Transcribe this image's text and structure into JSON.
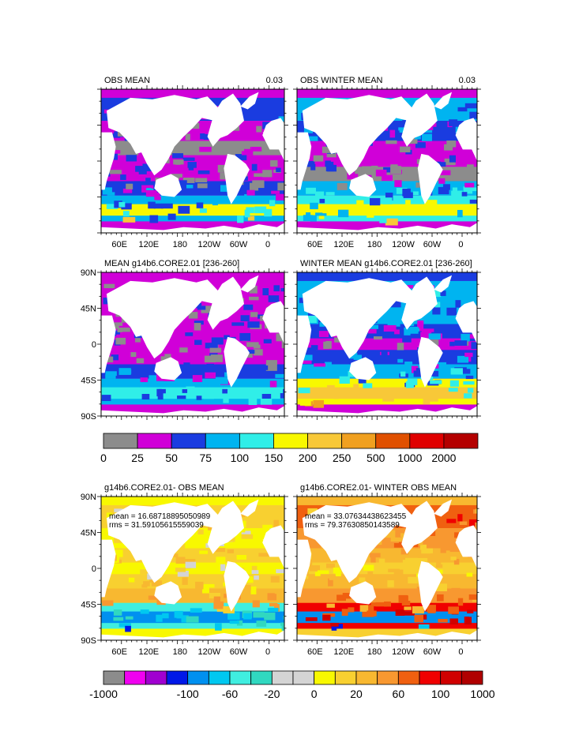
{
  "chart_data": {
    "type": "heatmap",
    "map": {
      "x_tick_labels": [
        "60E",
        "120E",
        "180",
        "120W",
        "60W",
        "0"
      ],
      "y_tick_labels": [
        "90N",
        "45N",
        "0",
        "45S",
        "90S"
      ]
    },
    "panels": [
      {
        "id": "obs-mean",
        "title": "OBS MEAN",
        "corner_value": "0.03",
        "show_x_labels": true,
        "show_y_labels": false,
        "scale": "absolute"
      },
      {
        "id": "obs-winter-mean",
        "title": "OBS WINTER MEAN",
        "corner_value": "0.03",
        "show_x_labels": true,
        "show_y_labels": false,
        "scale": "absolute"
      },
      {
        "id": "model-mean",
        "title": "MEAN g14b6.CORE2.01 [236-260]",
        "corner_value": "",
        "show_x_labels": false,
        "show_y_labels": true,
        "scale": "absolute"
      },
      {
        "id": "model-winter-mean",
        "title": "WINTER MEAN g14b6.CORE2.01 [236-260]",
        "corner_value": "",
        "show_x_labels": false,
        "show_y_labels": false,
        "scale": "absolute"
      },
      {
        "id": "diff-mean",
        "title": "g14b6.CORE2.01- OBS MEAN",
        "corner_value": "",
        "show_x_labels": true,
        "show_y_labels": true,
        "scale": "difference",
        "stats": [
          "mean = 16.68718895050989",
          "rms = 31.59105615559039"
        ]
      },
      {
        "id": "diff-winter-mean",
        "title": "g14b6.CORE2.01- WINTER OBS MEAN",
        "corner_value": "",
        "show_x_labels": true,
        "show_y_labels": false,
        "scale": "difference",
        "stats": [
          "mean = 33.07634438623455",
          "rms = 79.37630850143589"
        ]
      }
    ],
    "colorbars": [
      {
        "id": "absolute",
        "labels": [
          "0",
          "25",
          "50",
          "75",
          "100",
          "150",
          "200",
          "250",
          "500",
          "1000",
          "2000"
        ],
        "colors": [
          "#8c8c8c",
          "#d000d8",
          "#1a3ce0",
          "#00b4f0",
          "#30eee8",
          "#f8f800",
          "#f8c838",
          "#f0a020",
          "#e05000",
          "#e00000",
          "#b40000"
        ]
      },
      {
        "id": "difference",
        "labels": [
          "-1000",
          "-100",
          "-60",
          "-20",
          "0",
          "20",
          "60",
          "100",
          "1000"
        ],
        "label_boundary_index": [
          0,
          4,
          6,
          8,
          10,
          12,
          14,
          16,
          18
        ],
        "colors": [
          "#8c8c8c",
          "#f000f0",
          "#a000d0",
          "#0018e8",
          "#0090f0",
          "#00c8f0",
          "#40eee0",
          "#30d8c0",
          "#d4d4d4",
          "#d4d4d4",
          "#f8f800",
          "#f8d030",
          "#f8b830",
          "#f89830",
          "#f06010",
          "#f00000",
          "#d00000",
          "#b00000"
        ]
      }
    ],
    "land_color": "#ffffff"
  }
}
